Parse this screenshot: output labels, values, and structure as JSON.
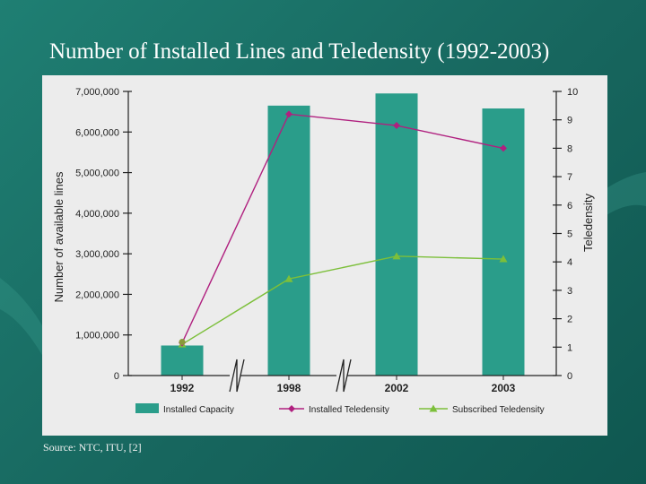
{
  "slide": {
    "title": "Number of Installed Lines and Teledensity (1992-2003)",
    "source": "Source: NTC, ITU, [2]"
  },
  "colors": {
    "background": "#1f7f73",
    "bar": "#2a9d8a",
    "installed_teledensity": "#b0207f",
    "subscribed_teledensity": "#7cbf3a",
    "panel": "#ececec"
  },
  "chart_data": {
    "type": "bar",
    "categories": [
      "1992",
      "1998",
      "2002",
      "2003"
    ],
    "ylabel": "Number of available lines",
    "y2label": "Teledensity",
    "ylim": [
      0,
      7000000
    ],
    "y2lim": [
      0,
      10
    ],
    "y_ticks": [
      "0",
      "1,000,000",
      "2,000,000",
      "3,000,000",
      "4,000,000",
      "5,000,000",
      "6,000,000",
      "7,000,000"
    ],
    "y2_ticks": [
      "0",
      "1",
      "2",
      "3",
      "4",
      "5",
      "6",
      "7",
      "8",
      "9",
      "10"
    ],
    "axis_breaks": [
      "between 1992 and 1998",
      "between 1998 and 2002"
    ],
    "legend_position": "bottom",
    "grid": false,
    "series": [
      {
        "name": "Installed Capacity",
        "type": "bar",
        "axis": "left",
        "values": [
          740000,
          6650000,
          6950000,
          6580000
        ]
      },
      {
        "name": "Installed Teledensity",
        "type": "line",
        "axis": "right",
        "marker": "diamond",
        "values": [
          1.15,
          9.2,
          8.8,
          8.0
        ]
      },
      {
        "name": "Subscribed Teledensity",
        "type": "line",
        "axis": "right",
        "marker": "triangle",
        "values": [
          1.1,
          3.4,
          4.2,
          4.1
        ]
      }
    ]
  }
}
